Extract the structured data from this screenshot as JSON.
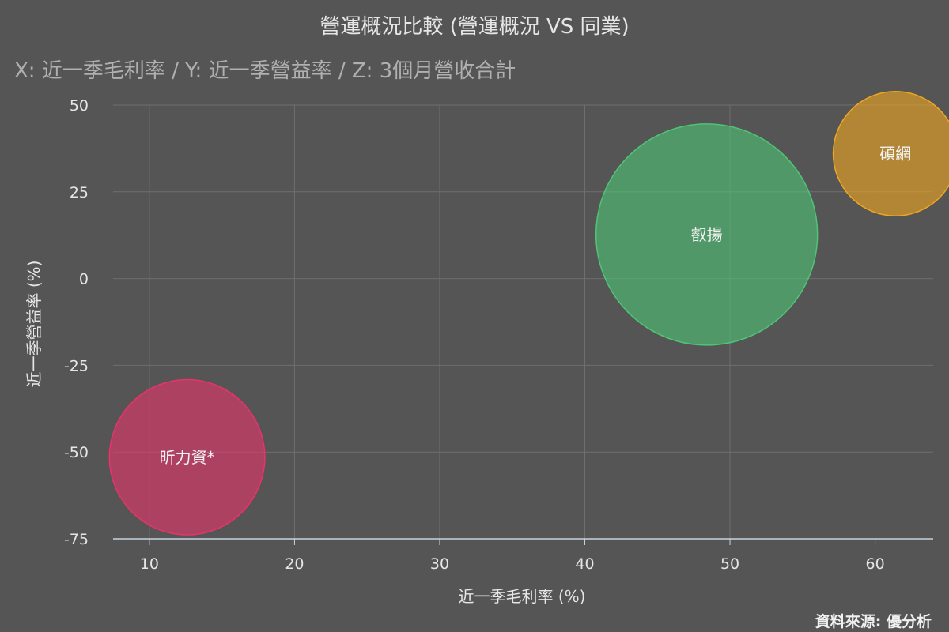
{
  "colors": {
    "background": "#555555",
    "grid": "#6e6e6e",
    "axis": "#c7d3e0",
    "title": "#e6e6e6",
    "subtitle": "#b0b0b0",
    "label": "#e6e6e6"
  },
  "chart_data": {
    "type": "scatter",
    "variant": "bubble",
    "title": "營運概況比較 (營運概況 VS 同業)",
    "subtitle": "X: 近一季毛利率 / Y: 近一季營益率 / Z: 3個月營收合計",
    "xlabel": "近一季毛利率 (%)",
    "ylabel": "近一季營益率 (%)",
    "xlim": [
      7.5,
      64
    ],
    "ylim": [
      -75,
      50
    ],
    "xticks": [
      10,
      20,
      30,
      40,
      50,
      60
    ],
    "yticks": [
      50,
      25,
      0,
      -25,
      -50,
      -75
    ],
    "grid": true,
    "series": [
      {
        "label": "昕力資*",
        "x": 12.6,
        "y": -51.5,
        "z": 0.34,
        "color": "#e8336b"
      },
      {
        "label": "叡揚",
        "x": 48.4,
        "y": 12.7,
        "z": 1.0,
        "color": "#4fc476"
      },
      {
        "label": "碩網",
        "x": 61.4,
        "y": 36.0,
        "z": 0.15,
        "color": "#f0a71e"
      }
    ],
    "credit": "資料來源: 優分析"
  }
}
